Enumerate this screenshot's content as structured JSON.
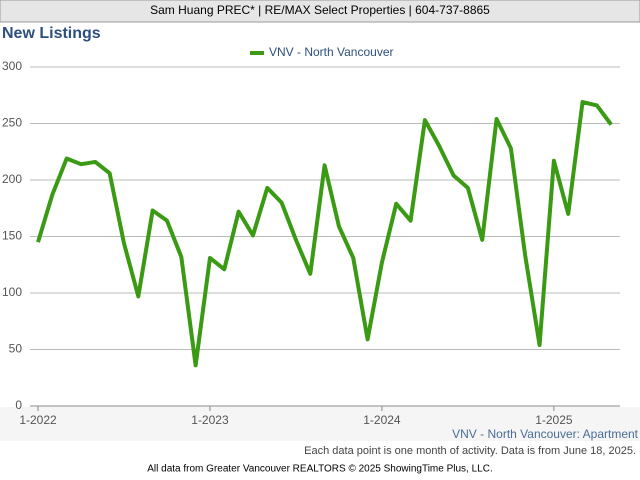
{
  "header": "Sam Huang PREC* | RE/MAX Select Properties | 604-737-8865",
  "chart_data": {
    "type": "line",
    "title": "New Listings",
    "categories": [
      "1-2022",
      null,
      null,
      null,
      null,
      null,
      null,
      null,
      null,
      null,
      null,
      null,
      "1-2023",
      null,
      null,
      null,
      null,
      null,
      null,
      null,
      null,
      null,
      null,
      null,
      "1-2024",
      null,
      null,
      null,
      null,
      null,
      null,
      null,
      null,
      null,
      null,
      null,
      "1-2025",
      null,
      null,
      null,
      null
    ],
    "series": [
      {
        "name": "VNV - North Vancouver",
        "color": "#3a9a14",
        "values": [
          145,
          187,
          219,
          214,
          216,
          206,
          144,
          97,
          173,
          164,
          132,
          36,
          131,
          121,
          172,
          151,
          193,
          180,
          147,
          117,
          213,
          159,
          131,
          59,
          127,
          179,
          164,
          253,
          230,
          204,
          193,
          147,
          254,
          228,
          133,
          54,
          217,
          170,
          269,
          266,
          249
        ]
      }
    ],
    "ylim": [
      0,
      300
    ],
    "yticks": [
      0,
      50,
      100,
      150,
      200,
      250,
      300
    ],
    "grid": true,
    "legend": "top",
    "subtitle": "VNV - North Vancouver: Apartment",
    "note": "Each data point is one month of activity. Data is from June 18, 2025."
  },
  "footer": "All data from Greater Vancouver REALTORS © 2025 ShowingTime Plus, LLC."
}
